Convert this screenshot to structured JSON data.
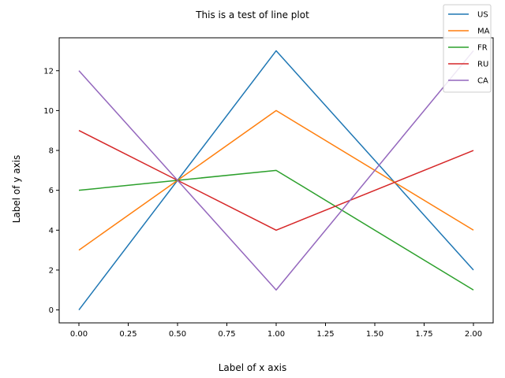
{
  "chart_data": {
    "type": "line",
    "title": "This is a test of line plot",
    "xlabel": "Label of x axis",
    "ylabel": "Label of y axis",
    "x": [
      0.0,
      0.5,
      1.0,
      2.0
    ],
    "series": [
      {
        "name": "US",
        "color": "#1f77b4",
        "values": [
          0,
          6.5,
          13,
          2
        ]
      },
      {
        "name": "MA",
        "color": "#ff7f0e",
        "values": [
          3,
          6.5,
          10,
          4
        ]
      },
      {
        "name": "FR",
        "color": "#2ca02c",
        "values": [
          6,
          6.5,
          7,
          1
        ]
      },
      {
        "name": "RU",
        "color": "#d62728",
        "values": [
          9,
          6.5,
          4,
          8
        ]
      },
      {
        "name": "CA",
        "color": "#9467bd",
        "values": [
          12,
          6.5,
          1,
          13
        ]
      }
    ],
    "xlim": [
      -0.1,
      2.1
    ],
    "ylim": [
      -0.65,
      13.65
    ],
    "xticks": [
      "0.00",
      "0.25",
      "0.50",
      "0.75",
      "1.00",
      "1.25",
      "1.50",
      "1.75",
      "2.00"
    ],
    "yticks": [
      "0",
      "2",
      "4",
      "6",
      "8",
      "10",
      "12"
    ],
    "grid": false,
    "legend_position": "top-right"
  }
}
